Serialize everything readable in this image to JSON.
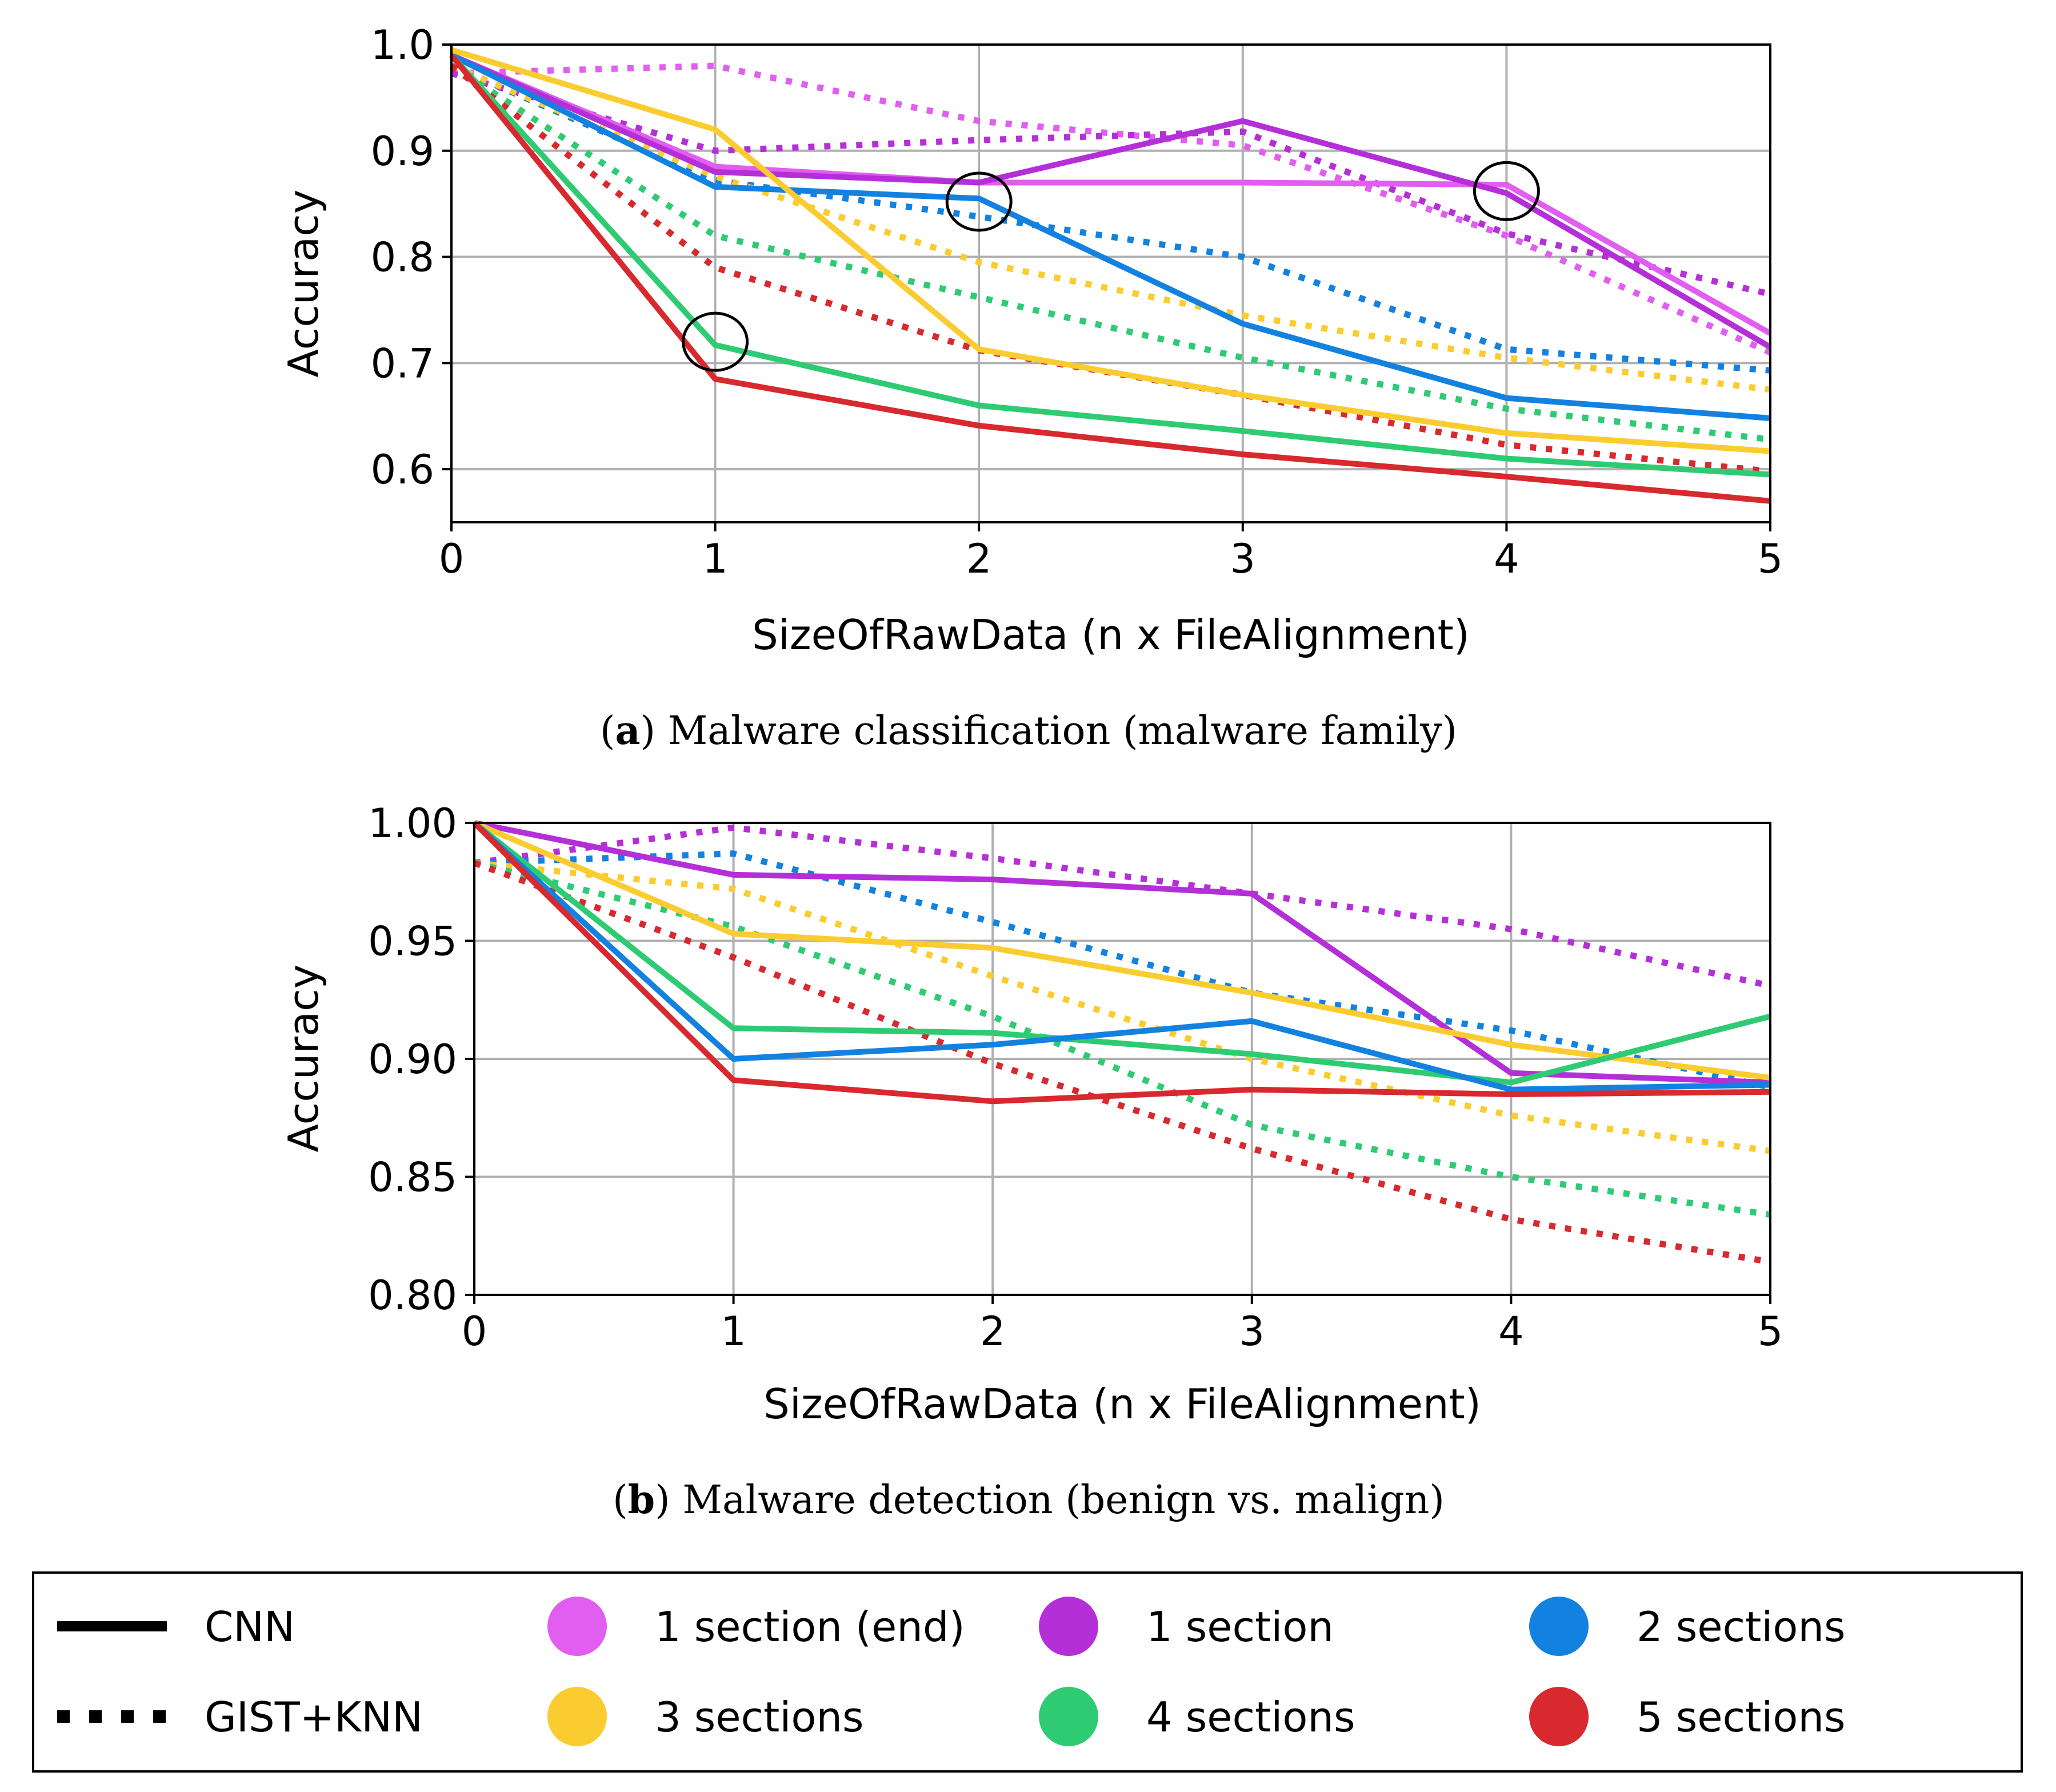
{
  "series_colors": {
    "1 section (end)": "#e15ef0",
    "1 section": "#b52fd8",
    "2 sections": "#1381e0",
    "3 sections": "#fbcc2f",
    "4 sections": "#2ecb73",
    "5 sections": "#d7292e"
  },
  "chart_data": [
    {
      "type": "line",
      "panel_label": "a",
      "caption": "Malware classification (malware family)",
      "xlabel": "SizeOfRawData (n x FileAlignment)",
      "ylabel": "Accuracy",
      "xlim": [
        0,
        5
      ],
      "ylim": [
        0.55,
        1.0
      ],
      "xticks": [
        0,
        1,
        2,
        3,
        4,
        5
      ],
      "yticks": [
        0.6,
        0.7,
        0.8,
        0.9,
        1.0
      ],
      "ytick_labels": [
        "0.6",
        "0.7",
        "0.8",
        "0.9",
        "1.0"
      ],
      "grid": true,
      "x": [
        0,
        1,
        2,
        3,
        4,
        5
      ],
      "series": [
        {
          "name": "1 section (end)",
          "method": "CNN",
          "values": [
            0.99,
            0.885,
            0.87,
            0.87,
            0.868,
            0.728
          ]
        },
        {
          "name": "1 section",
          "method": "CNN",
          "values": [
            0.99,
            0.88,
            0.87,
            0.928,
            0.86,
            0.715
          ]
        },
        {
          "name": "2 sections",
          "method": "CNN",
          "values": [
            0.99,
            0.866,
            0.855,
            0.737,
            0.667,
            0.648
          ]
        },
        {
          "name": "3 sections",
          "method": "CNN",
          "values": [
            0.995,
            0.92,
            0.713,
            0.67,
            0.634,
            0.617
          ]
        },
        {
          "name": "4 sections",
          "method": "CNN",
          "values": [
            0.99,
            0.717,
            0.66,
            0.636,
            0.61,
            0.595
          ]
        },
        {
          "name": "5 sections",
          "method": "CNN",
          "values": [
            0.99,
            0.685,
            0.641,
            0.614,
            0.593,
            0.57
          ]
        },
        {
          "name": "1 section (end)",
          "method": "GIST+KNN",
          "values": [
            0.973,
            0.98,
            0.928,
            0.905,
            0.82,
            0.71
          ]
        },
        {
          "name": "1 section",
          "method": "GIST+KNN",
          "values": [
            0.973,
            0.9,
            0.91,
            0.918,
            0.822,
            0.765
          ]
        },
        {
          "name": "2 sections",
          "method": "GIST+KNN",
          "values": [
            0.98,
            0.872,
            0.838,
            0.8,
            0.713,
            0.693
          ]
        },
        {
          "name": "3 sections",
          "method": "GIST+KNN",
          "values": [
            0.98,
            0.876,
            0.795,
            0.745,
            0.705,
            0.675
          ]
        },
        {
          "name": "4 sections",
          "method": "GIST+KNN",
          "values": [
            0.98,
            0.82,
            0.762,
            0.705,
            0.657,
            0.628
          ]
        },
        {
          "name": "5 sections",
          "method": "GIST+KNN",
          "values": [
            0.98,
            0.79,
            0.712,
            0.67,
            0.623,
            0.598
          ]
        }
      ],
      "annotations": [
        {
          "type": "circle",
          "x": 1,
          "y": 0.72
        },
        {
          "type": "circle",
          "x": 2,
          "y": 0.852
        },
        {
          "type": "circle",
          "x": 4,
          "y": 0.862
        }
      ]
    },
    {
      "type": "line",
      "panel_label": "b",
      "caption": "Malware detection (benign vs. malign)",
      "xlabel": "SizeOfRawData (n x FileAlignment)",
      "ylabel": "Accuracy",
      "xlim": [
        0,
        5
      ],
      "ylim": [
        0.8,
        1.0
      ],
      "xticks": [
        0,
        1,
        2,
        3,
        4,
        5
      ],
      "yticks": [
        0.8,
        0.85,
        0.9,
        0.95,
        1.0
      ],
      "ytick_labels": [
        "0.80",
        "0.85",
        "0.90",
        "0.95",
        "1.00"
      ],
      "grid": true,
      "x": [
        0,
        1,
        2,
        3,
        4,
        5
      ],
      "series": [
        {
          "name": "1 section",
          "method": "CNN",
          "values": [
            1.0,
            0.978,
            0.976,
            0.97,
            0.894,
            0.89
          ]
        },
        {
          "name": "3 sections",
          "method": "CNN",
          "values": [
            1.0,
            0.953,
            0.947,
            0.928,
            0.906,
            0.892
          ]
        },
        {
          "name": "4 sections",
          "method": "CNN",
          "values": [
            1.0,
            0.913,
            0.911,
            0.902,
            0.89,
            0.918
          ]
        },
        {
          "name": "2 sections",
          "method": "CNN",
          "values": [
            1.0,
            0.9,
            0.906,
            0.916,
            0.887,
            0.889
          ]
        },
        {
          "name": "5 sections",
          "method": "CNN",
          "values": [
            1.0,
            0.891,
            0.882,
            0.887,
            0.885,
            0.886
          ]
        },
        {
          "name": "1 section",
          "method": "GIST+KNN",
          "values": [
            0.983,
            0.998,
            0.985,
            0.97,
            0.955,
            0.931
          ]
        },
        {
          "name": "2 sections",
          "method": "GIST+KNN",
          "values": [
            0.983,
            0.987,
            0.958,
            0.928,
            0.912,
            0.888
          ]
        },
        {
          "name": "3 sections",
          "method": "GIST+KNN",
          "values": [
            0.983,
            0.972,
            0.935,
            0.9,
            0.876,
            0.861
          ]
        },
        {
          "name": "4 sections",
          "method": "GIST+KNN",
          "values": [
            0.983,
            0.956,
            0.918,
            0.872,
            0.85,
            0.834
          ]
        },
        {
          "name": "5 sections",
          "method": "GIST+KNN",
          "values": [
            0.983,
            0.943,
            0.898,
            0.862,
            0.832,
            0.814
          ]
        }
      ]
    }
  ],
  "legend": {
    "methods": [
      {
        "label": "CNN",
        "style": "solid"
      },
      {
        "label": "GIST+KNN",
        "style": "dotted"
      }
    ],
    "series": [
      {
        "label": "1 section (end)",
        "color": "#e15ef0"
      },
      {
        "label": "1 section",
        "color": "#b52fd8"
      },
      {
        "label": "2 sections",
        "color": "#1381e0"
      },
      {
        "label": "3 sections",
        "color": "#fbcc2f"
      },
      {
        "label": "4 sections",
        "color": "#2ecb73"
      },
      {
        "label": "5 sections",
        "color": "#d7292e"
      }
    ]
  }
}
